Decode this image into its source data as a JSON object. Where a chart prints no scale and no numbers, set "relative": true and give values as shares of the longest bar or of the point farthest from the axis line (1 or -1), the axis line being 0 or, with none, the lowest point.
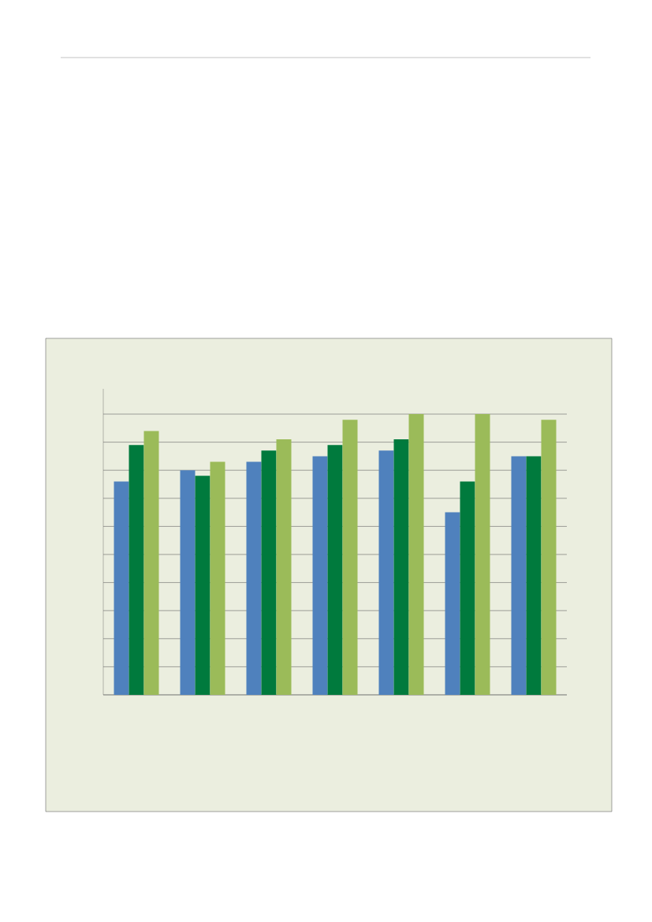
{
  "chart_data": {
    "type": "bar",
    "relative": true,
    "grid": "y",
    "categories": [
      null,
      null,
      null,
      null,
      null,
      null,
      null
    ],
    "series": [
      {
        "color": "#4f81bd",
        "values": [
          0.76,
          0.8,
          0.83,
          0.85,
          0.87,
          0.65,
          0.85
        ]
      },
      {
        "color": "#007a3d",
        "values": [
          0.89,
          0.78,
          0.87,
          0.89,
          0.91,
          0.76,
          0.85
        ]
      },
      {
        "color": "#9bbb59",
        "values": [
          0.94,
          0.83,
          0.91,
          0.98,
          1,
          1,
          0.98
        ]
      }
    ]
  }
}
